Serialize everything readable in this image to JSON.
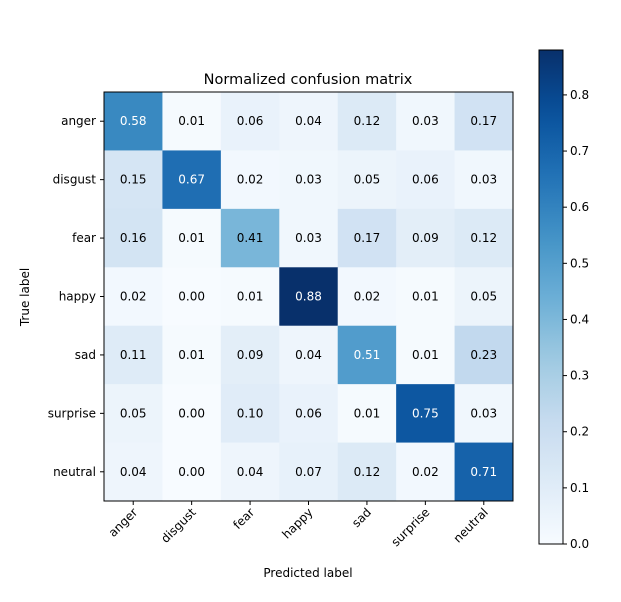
{
  "chart_data": {
    "type": "heatmap",
    "title": "Normalized confusion matrix",
    "xlabel": "Predicted label",
    "ylabel": "True label",
    "x_categories": [
      "anger",
      "disgust",
      "fear",
      "happy",
      "sad",
      "surprise",
      "neutral"
    ],
    "y_categories": [
      "anger",
      "disgust",
      "fear",
      "happy",
      "sad",
      "surprise",
      "neutral"
    ],
    "values": [
      [
        0.58,
        0.01,
        0.06,
        0.04,
        0.12,
        0.03,
        0.17
      ],
      [
        0.15,
        0.67,
        0.02,
        0.03,
        0.05,
        0.06,
        0.03
      ],
      [
        0.16,
        0.01,
        0.41,
        0.03,
        0.17,
        0.09,
        0.12
      ],
      [
        0.02,
        0.0,
        0.01,
        0.88,
        0.02,
        0.01,
        0.05
      ],
      [
        0.11,
        0.01,
        0.09,
        0.04,
        0.51,
        0.01,
        0.23
      ],
      [
        0.05,
        0.0,
        0.1,
        0.06,
        0.01,
        0.75,
        0.03
      ],
      [
        0.04,
        0.0,
        0.04,
        0.07,
        0.12,
        0.02,
        0.71
      ]
    ],
    "colormap": "Blues",
    "colorbar": {
      "range": [
        0,
        0.88
      ],
      "ticks": [
        "0.0",
        "0.1",
        "0.2",
        "0.3",
        "0.4",
        "0.5",
        "0.6",
        "0.7",
        "0.8"
      ]
    }
  }
}
